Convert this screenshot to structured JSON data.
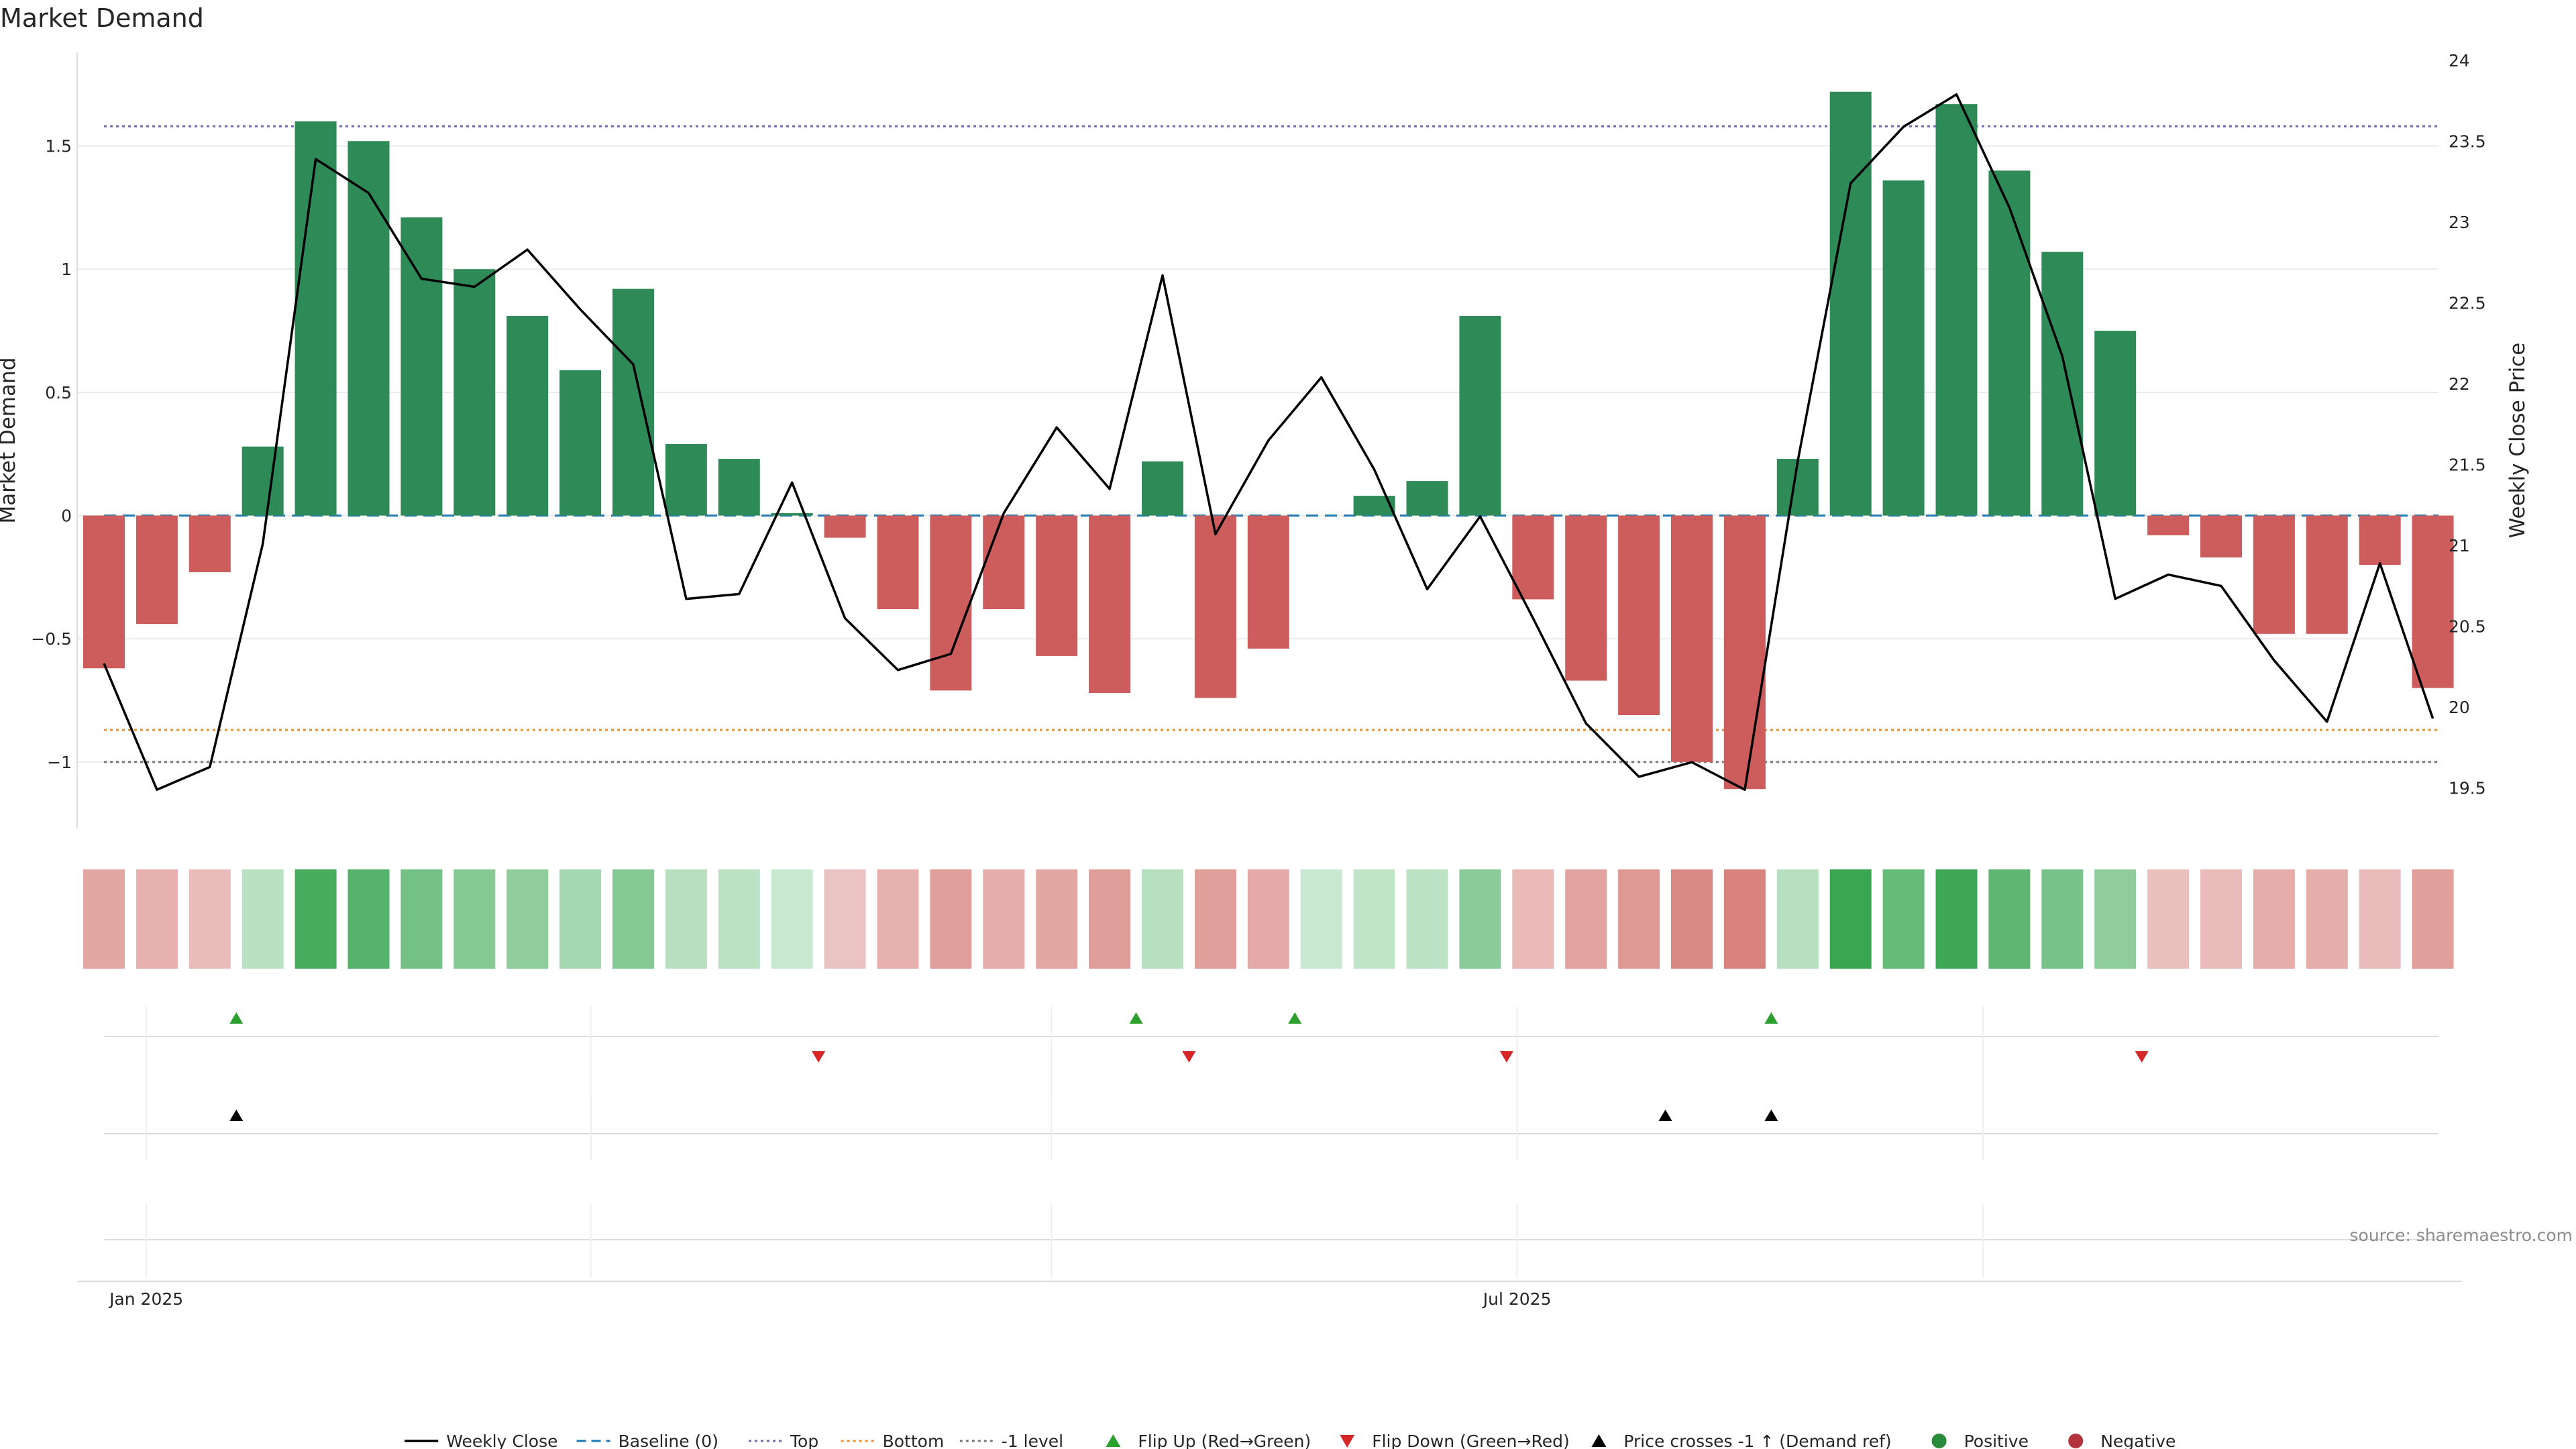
{
  "title": "Market Demand",
  "source": "source: sharemaestro.com",
  "colors": {
    "positive": "#2e8b57",
    "negative": "#cd5c5c",
    "line": "#000000",
    "baseline": "#1f77b4",
    "top": "#6b6baf",
    "bottom": "#e8912f",
    "minus_one": "#777777",
    "flip_up": "#2ca02c",
    "flip_down": "#d62728",
    "cross": "#000000"
  },
  "chart_data": {
    "type": "bar",
    "title": "Market Demand",
    "ylabel": "Market Demand",
    "y2label": "Weekly Close Price",
    "ylim": [
      -1.27,
      1.88
    ],
    "y2lim": [
      19.25,
      24.05
    ],
    "yticks": [
      -1,
      -0.5,
      0,
      0.5,
      1,
      1.5
    ],
    "ytick_labels": [
      "−1",
      "−0.5",
      "0",
      "0.5",
      "1",
      "1.5"
    ],
    "y2ticks": [
      19.5,
      20,
      20.5,
      21,
      21.5,
      22,
      22.5,
      23,
      23.5,
      24
    ],
    "y2tick_labels": [
      "19.5",
      "20",
      "20.5",
      "21",
      "21.5",
      "22",
      "22.5",
      "23",
      "23.5",
      "24"
    ],
    "xticks": [
      {
        "label": "Jan 2025",
        "week": 1.3
      },
      {
        "label": "Jul 2025",
        "week": 27.2
      }
    ],
    "x_week_separators": [
      1.3,
      9.7,
      18.4,
      27.2,
      36.0
    ],
    "levels": {
      "baseline": 0,
      "top": 1.58,
      "bottom": -0.87,
      "minus_one": -1
    },
    "demand": [
      -0.62,
      -0.44,
      -0.23,
      0.28,
      1.6,
      1.52,
      1.21,
      1.0,
      0.81,
      0.59,
      0.92,
      0.29,
      0.23,
      0.01,
      -0.09,
      -0.38,
      -0.71,
      -0.38,
      -0.57,
      -0.72,
      0.22,
      -0.74,
      -0.54,
      0.0,
      0.08,
      0.14,
      0.81,
      -0.34,
      -0.67,
      -0.81,
      -1.0,
      -1.11,
      0.23,
      1.72,
      1.36,
      1.67,
      1.4,
      1.07,
      0.75,
      -0.08,
      -0.17,
      -0.48,
      -0.48,
      -0.2,
      -0.7
    ],
    "weekly_close": [
      20.27,
      19.49,
      19.63,
      21.01,
      23.39,
      23.18,
      22.65,
      22.6,
      22.83,
      22.46,
      22.12,
      20.67,
      20.7,
      21.39,
      20.55,
      20.23,
      20.33,
      21.2,
      21.73,
      21.35,
      22.67,
      21.07,
      21.65,
      22.04,
      21.47,
      20.73,
      21.18,
      20.55,
      19.9,
      19.57,
      19.66,
      19.49,
      21.52,
      23.24,
      23.59,
      23.79,
      23.09,
      22.17,
      20.67,
      20.82,
      20.75,
      20.29,
      19.91,
      20.89,
      19.93
    ],
    "heat_strip": [
      -0.6,
      -0.45,
      -0.3,
      0.32,
      1.6,
      1.45,
      1.1,
      0.9,
      0.8,
      0.55,
      0.9,
      0.35,
      0.3,
      0.15,
      -0.2,
      -0.45,
      -0.7,
      -0.5,
      -0.6,
      -0.72,
      0.35,
      -0.7,
      -0.55,
      0.15,
      0.25,
      0.3,
      0.85,
      -0.35,
      -0.65,
      -0.78,
      -1.0,
      -1.1,
      0.35,
      1.75,
      1.25,
      1.7,
      1.35,
      1.05,
      0.8,
      -0.25,
      -0.3,
      -0.5,
      -0.5,
      -0.3,
      -0.7
    ],
    "flip_up_weeks": [
      3,
      20,
      23,
      32
    ],
    "flip_down_weeks": [
      14,
      21,
      27,
      39
    ],
    "price_cross_weeks": [
      3,
      30,
      32
    ],
    "legend": [
      {
        "label": "Weekly Close",
        "kind": "line"
      },
      {
        "label": "Baseline (0)",
        "kind": "dash"
      },
      {
        "label": "Top",
        "kind": "dot-top"
      },
      {
        "label": "Bottom",
        "kind": "dot-bottom"
      },
      {
        "label": "-1 level",
        "kind": "dot-minus"
      },
      {
        "label": "Flip Up (Red→Green)",
        "kind": "tri-up-green"
      },
      {
        "label": "Flip Down (Green→Red)",
        "kind": "tri-down-red"
      },
      {
        "label": "Price crosses -1 ↑ (Demand ref)",
        "kind": "tri-up-black"
      },
      {
        "label": "Positive",
        "kind": "dot-green"
      },
      {
        "label": "Negative",
        "kind": "dot-red"
      }
    ]
  }
}
